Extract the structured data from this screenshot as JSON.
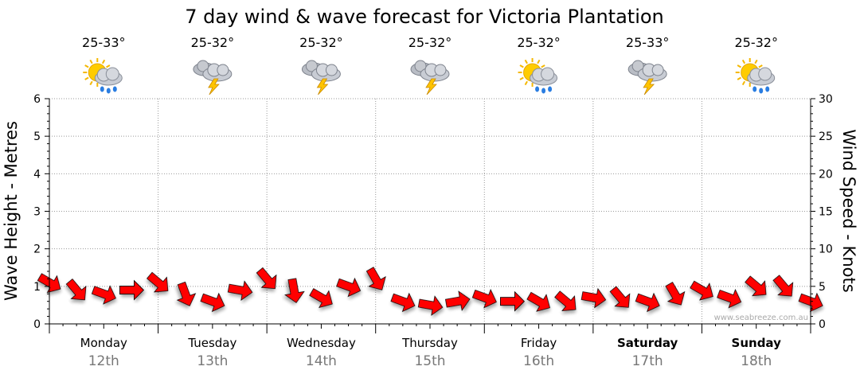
{
  "chart_data": {
    "type": "line",
    "title": "7 day wind & wave forecast for Victoria Plantation",
    "ylabel_left": "Wave Height - Metres",
    "ylabel_right": "Wind Speed - Knots",
    "ylim_left": [
      0,
      6
    ],
    "ylim_right": [
      0,
      30
    ],
    "left_ticks": [
      "0",
      "1",
      "2",
      "3",
      "4",
      "5",
      "6"
    ],
    "right_ticks": [
      "0",
      "5",
      "10",
      "15",
      "20",
      "25",
      "30"
    ],
    "grid": true,
    "days": [
      {
        "name": "Monday",
        "date": "12th",
        "temp": "25-33°",
        "icon": "sun-cloud-rain-icon",
        "bold": false
      },
      {
        "name": "Tuesday",
        "date": "13th",
        "temp": "25-32°",
        "icon": "cloud-storm-icon",
        "bold": false
      },
      {
        "name": "Wednesday",
        "date": "14th",
        "temp": "25-32°",
        "icon": "cloud-storm-icon",
        "bold": false
      },
      {
        "name": "Thursday",
        "date": "15th",
        "temp": "25-32°",
        "icon": "cloud-storm-icon",
        "bold": false
      },
      {
        "name": "Friday",
        "date": "16th",
        "temp": "25-32°",
        "icon": "sun-cloud-rain-icon",
        "bold": false
      },
      {
        "name": "Saturday",
        "date": "17th",
        "temp": "25-33°",
        "icon": "cloud-storm-icon",
        "bold": true
      },
      {
        "name": "Sunday",
        "date": "18th",
        "temp": "25-32°",
        "icon": "sun-cloud-rain-icon",
        "bold": true
      }
    ],
    "series": [
      {
        "values_unit": "knots",
        "color": "#ff0000",
        "marker": "wind-arrow",
        "x_day": [
          0.0,
          0.25,
          0.5,
          0.75,
          1.0,
          1.25,
          1.5,
          1.75,
          2.0,
          2.25,
          2.5,
          2.75,
          3.0,
          3.25,
          3.5,
          3.75,
          4.0,
          4.25,
          4.5,
          4.75,
          5.0,
          5.25,
          5.5,
          5.75,
          6.0,
          6.25,
          6.5,
          6.75,
          7.0
        ],
        "values": [
          5.5,
          4.5,
          4.0,
          4.5,
          5.5,
          4.0,
          3.0,
          4.5,
          6.0,
          4.5,
          3.5,
          5.0,
          6.0,
          3.0,
          2.5,
          3.0,
          3.5,
          3.0,
          3.0,
          3.0,
          3.5,
          3.5,
          3.0,
          4.0,
          4.5,
          3.5,
          5.0,
          5.0,
          3.0
        ],
        "directions": [
          210,
          230,
          200,
          180,
          220,
          250,
          200,
          190,
          230,
          260,
          210,
          200,
          240,
          200,
          190,
          170,
          200,
          180,
          210,
          220,
          190,
          230,
          200,
          240,
          210,
          200,
          220,
          230,
          200
        ]
      }
    ],
    "watermark": "www.seabreeze.com.au"
  },
  "colors": {
    "arrow": "#ff0000",
    "grid": "#999999",
    "axis": "#000000",
    "date": "#777777"
  }
}
